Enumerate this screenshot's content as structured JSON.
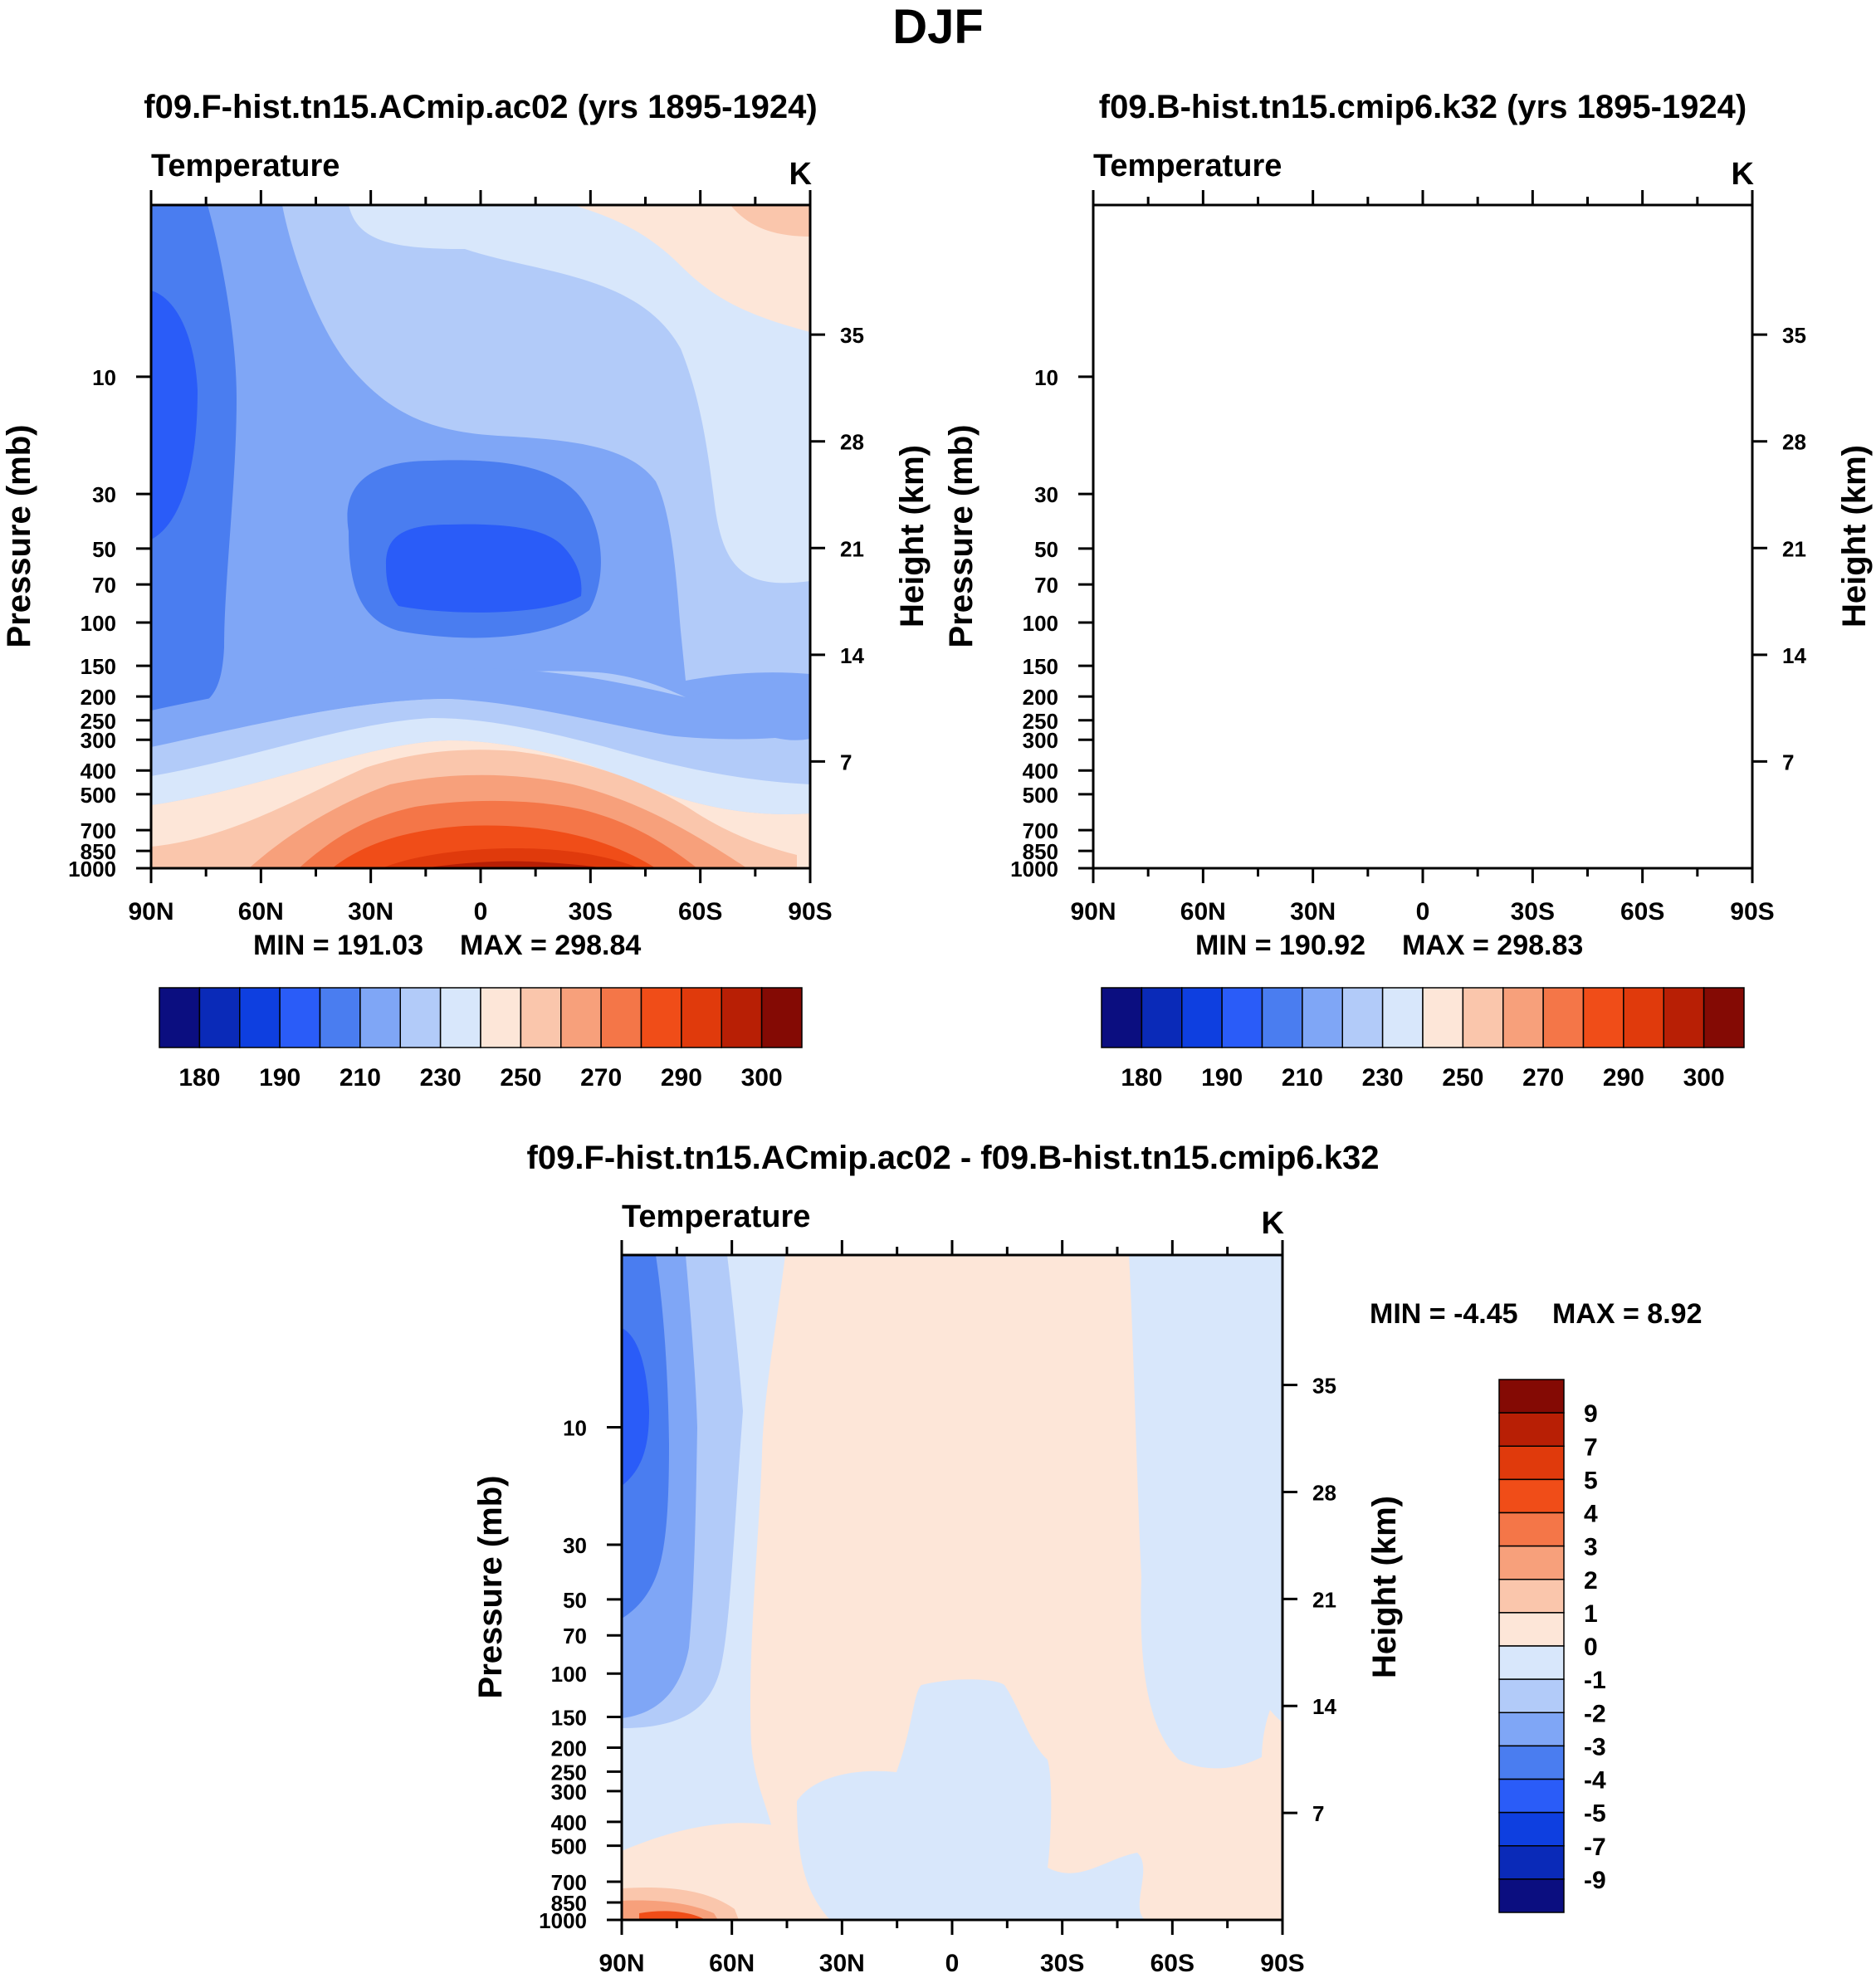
{
  "figure": {
    "title": "DJF"
  },
  "colors": {
    "abs": [
      "#0b0e80",
      "#0a2ab8",
      "#0e3fe0",
      "#2a5cf8",
      "#4a7df0",
      "#7fa6f6",
      "#b2cbf9",
      "#d8e7fb",
      "#fde6d8",
      "#fac6ac",
      "#f7a07b",
      "#f47648",
      "#f04d18",
      "#e03a0c",
      "#b81f05",
      "#840a04"
    ],
    "diff": [
      "#0b0e80",
      "#0a2ab8",
      "#0e3fe0",
      "#2a5cf8",
      "#4a7df0",
      "#7fa6f6",
      "#b2cbf9",
      "#d8e7fb",
      "#fde6d8",
      "#fac6ac",
      "#f7a07b",
      "#f47648",
      "#f04d18",
      "#e03a0c",
      "#b81f05",
      "#840a04"
    ]
  },
  "chart_data": [
    {
      "type": "contour",
      "title": "f09.F-hist.tn15.ACmip.ac02 (yrs 1895-1924)",
      "variable": "Temperature",
      "units": "K",
      "ylabel": "Pressure (mb)",
      "y2label": "Height (km)",
      "x_ticks": [
        "90N",
        "60N",
        "30N",
        "0",
        "30S",
        "60S",
        "90S"
      ],
      "y_ticks": [
        "10",
        "30",
        "50",
        "70",
        "100",
        "150",
        "200",
        "250",
        "300",
        "400",
        "500",
        "700",
        "850",
        "1000"
      ],
      "y2_ticks": [
        "35",
        "28",
        "21",
        "14",
        "7"
      ],
      "min_label": "MIN = 191.03",
      "max_label": "MAX = 298.84",
      "colorbar_labels": [
        "180",
        "190",
        "210",
        "230",
        "250",
        "270",
        "290",
        "300"
      ]
    },
    {
      "type": "contour",
      "title": "f09.B-hist.tn15.cmip6.k32 (yrs 1895-1924)",
      "variable": "Temperature",
      "units": "K",
      "ylabel": "Pressure (mb)",
      "y2label": "Height (km)",
      "x_ticks": [
        "90N",
        "60N",
        "30N",
        "0",
        "30S",
        "60S",
        "90S"
      ],
      "y_ticks": [
        "10",
        "30",
        "50",
        "70",
        "100",
        "150",
        "200",
        "250",
        "300",
        "400",
        "500",
        "700",
        "850",
        "1000"
      ],
      "y2_ticks": [
        "35",
        "28",
        "21",
        "14",
        "7"
      ],
      "min_label": "MIN = 190.92",
      "max_label": "MAX = 298.83",
      "colorbar_labels": [
        "180",
        "190",
        "210",
        "230",
        "250",
        "270",
        "290",
        "300"
      ]
    },
    {
      "type": "contour",
      "title": "f09.F-hist.tn15.ACmip.ac02 - f09.B-hist.tn15.cmip6.k32",
      "variable": "Temperature",
      "units": "K",
      "ylabel": "Pressure (mb)",
      "y2label": "Height (km)",
      "x_ticks": [
        "90N",
        "60N",
        "30N",
        "0",
        "30S",
        "60S",
        "90S"
      ],
      "y_ticks": [
        "10",
        "30",
        "50",
        "70",
        "100",
        "150",
        "200",
        "250",
        "300",
        "400",
        "500",
        "700",
        "850",
        "1000"
      ],
      "y2_ticks": [
        "35",
        "28",
        "21",
        "14",
        "7"
      ],
      "min_label": "MIN =  -4.45",
      "max_label": "MAX =   8.92",
      "colorbar_labels": [
        "9",
        "7",
        "5",
        "4",
        "3",
        "2",
        "1",
        "0",
        "-1",
        "-2",
        "-3",
        "-4",
        "-5",
        "-7",
        "-9"
      ]
    }
  ]
}
